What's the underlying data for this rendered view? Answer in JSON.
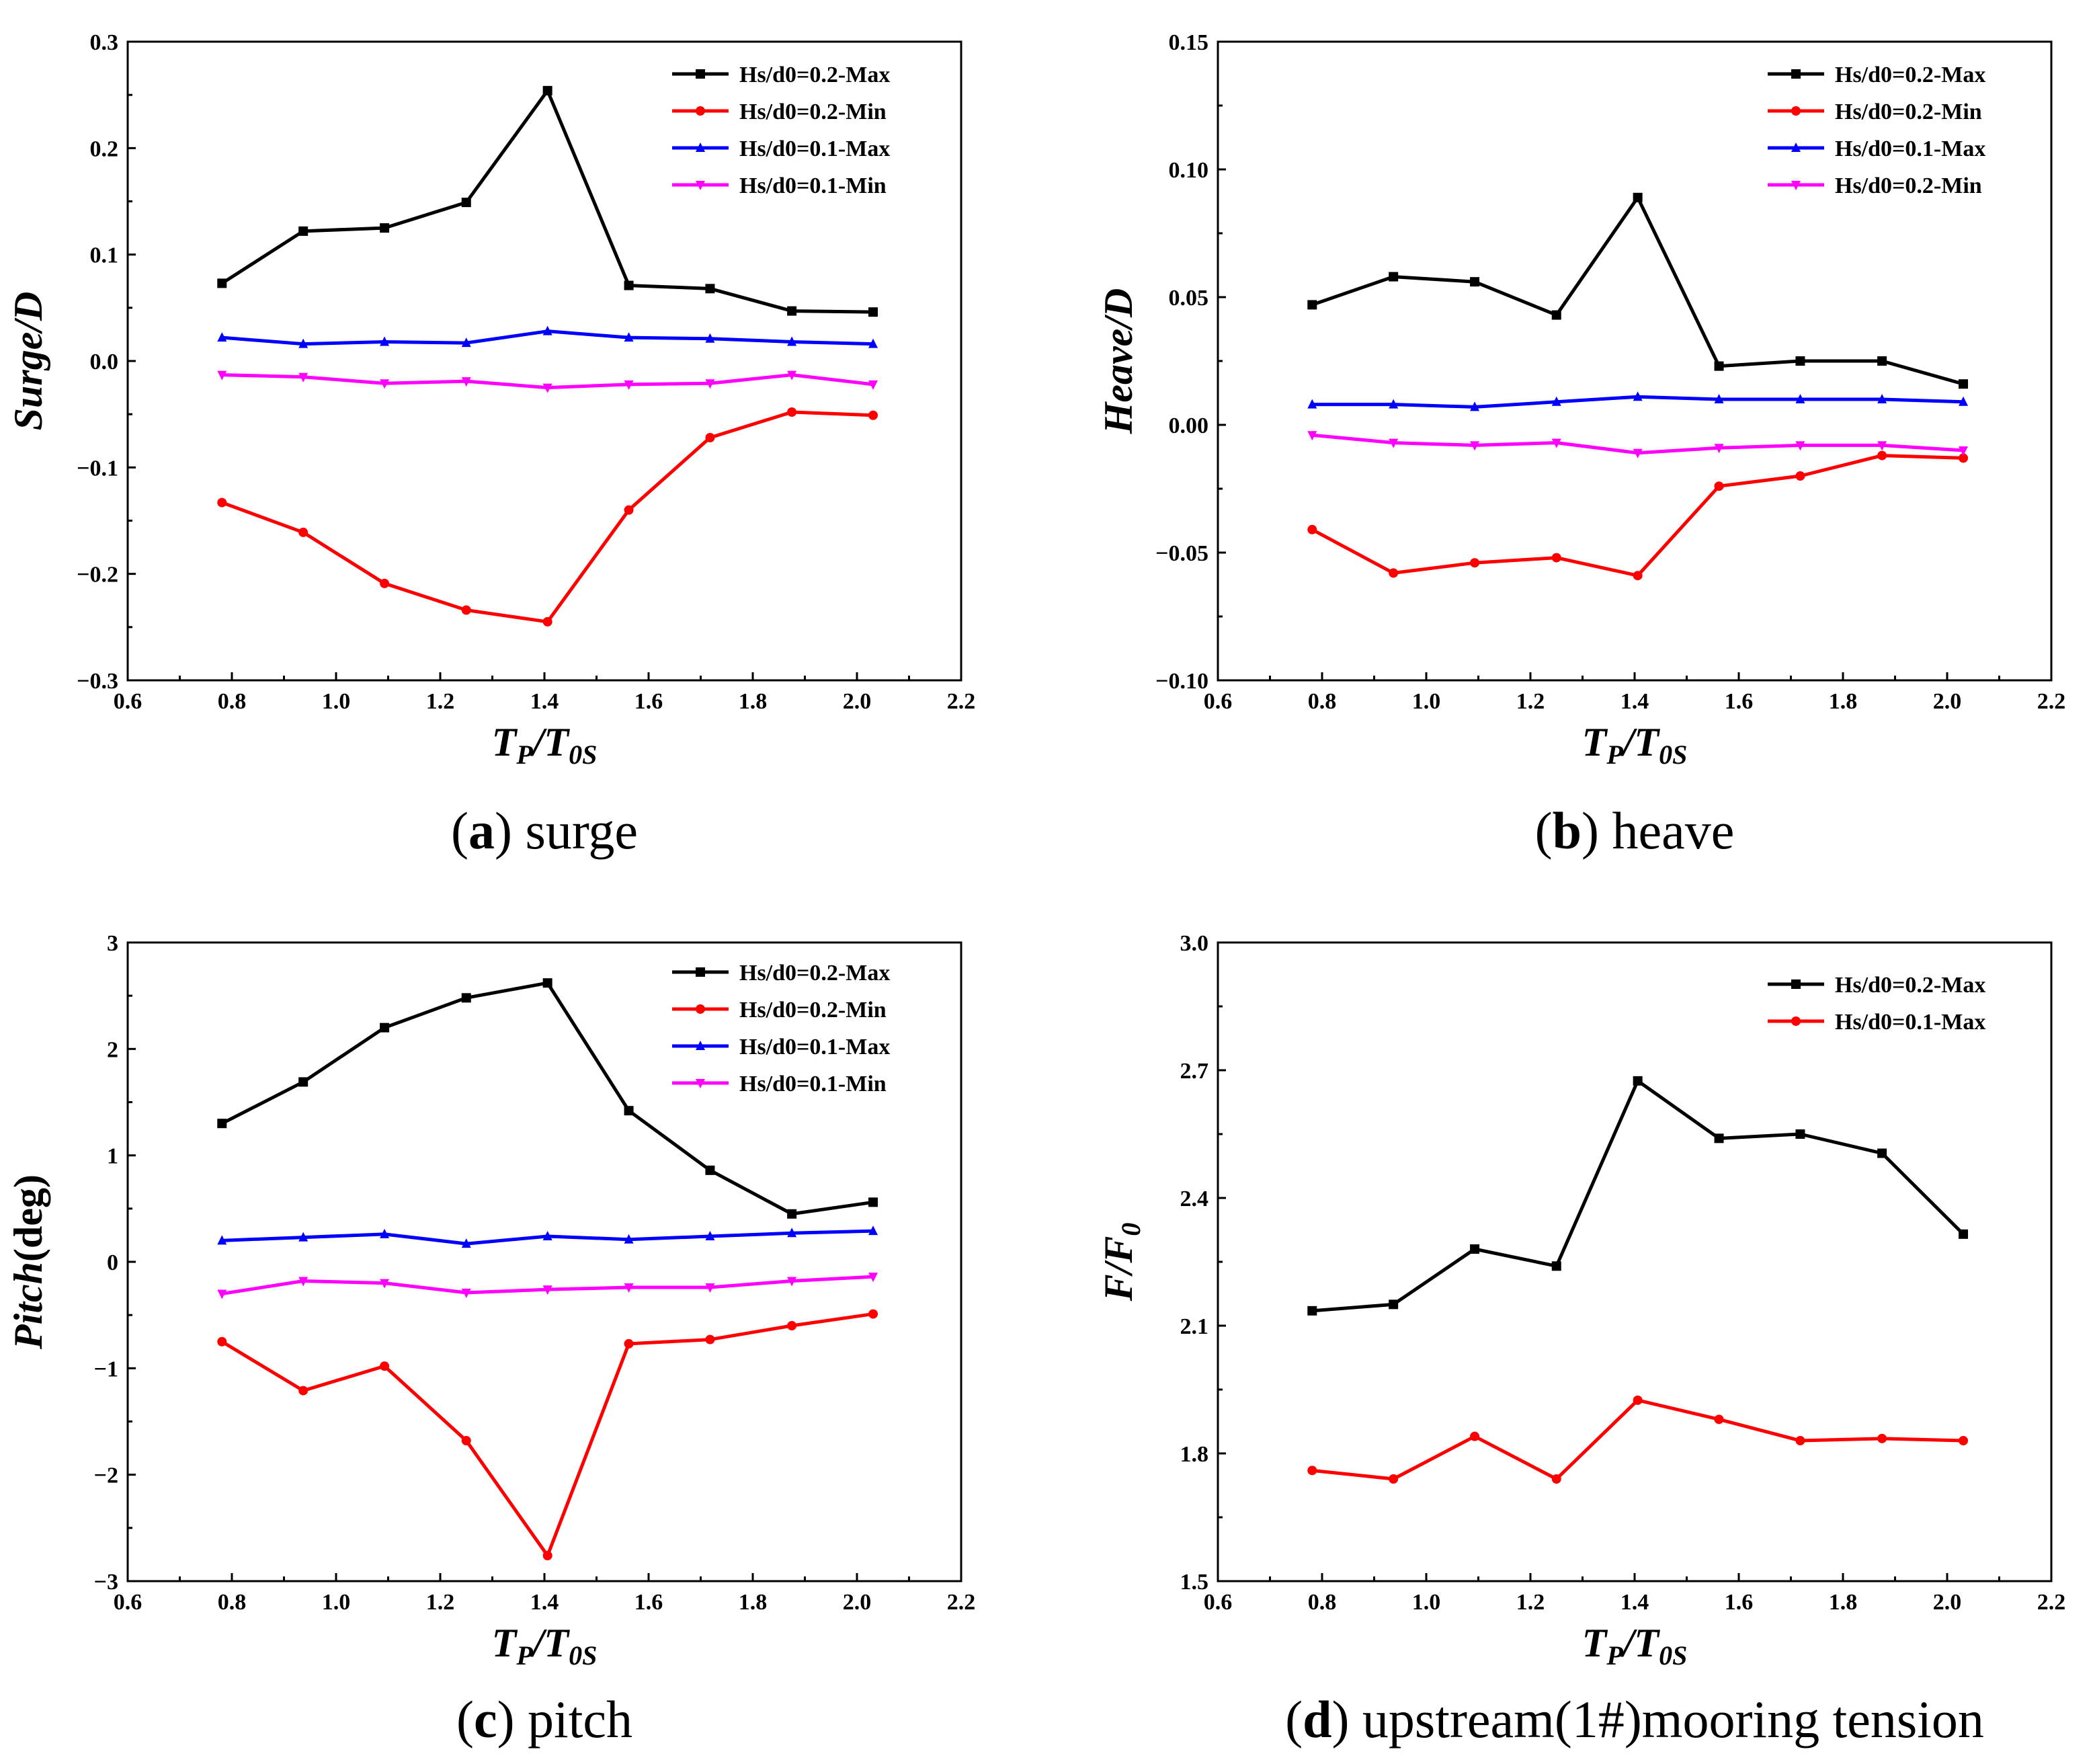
{
  "chart_data": [
    {
      "type": "line",
      "caption_letter": "a",
      "caption_text": "surge",
      "xlabel": {
        "main": "T",
        "sub1": "P",
        "slash": "/T",
        "sub2": "0S"
      },
      "ylabel": "Surge/D",
      "xlim": [
        0.6,
        2.2
      ],
      "ylim": [
        -0.3,
        0.3
      ],
      "xticks": [
        0.6,
        0.8,
        1.0,
        1.2,
        1.4,
        1.6,
        1.8,
        2.0,
        2.2
      ],
      "xtick_labels": [
        "0.6",
        "0.8",
        "1.0",
        "1.2",
        "1.4",
        "1.6",
        "1.8",
        "2.0",
        "2.2"
      ],
      "yticks": [
        -0.3,
        -0.2,
        -0.1,
        0.0,
        0.1,
        0.2,
        0.3
      ],
      "ytick_labels": [
        "−0.3",
        "−0.2",
        "−0.1",
        "0.0",
        "0.1",
        "0.2",
        "0.3"
      ],
      "x": [
        0.781,
        0.937,
        1.093,
        1.25,
        1.406,
        1.562,
        1.718,
        1.875,
        2.031
      ],
      "series": [
        {
          "name": "Hs/d0=0.2-Max",
          "color": "#000000",
          "marker": "square",
          "values": [
            0.073,
            0.122,
            0.125,
            0.149,
            0.254,
            0.071,
            0.068,
            0.047,
            0.046
          ]
        },
        {
          "name": "Hs/d0=0.2-Min",
          "color": "#ff0000",
          "marker": "circle",
          "values": [
            -0.133,
            -0.161,
            -0.209,
            -0.234,
            -0.245,
            -0.14,
            -0.072,
            -0.048,
            -0.051
          ]
        },
        {
          "name": "Hs/d0=0.1-Max",
          "color": "#0000ff",
          "marker": "triangle-up",
          "values": [
            0.022,
            0.016,
            0.018,
            0.017,
            0.028,
            0.022,
            0.021,
            0.018,
            0.016
          ]
        },
        {
          "name": "Hs/d0=0.1-Min",
          "color": "#ff00ff",
          "marker": "triangle-down",
          "values": [
            -0.013,
            -0.015,
            -0.021,
            -0.019,
            -0.025,
            -0.022,
            -0.021,
            -0.013,
            -0.022
          ]
        }
      ]
    },
    {
      "type": "line",
      "caption_letter": "b",
      "caption_text": "heave",
      "xlabel": {
        "main": "T",
        "sub1": "P",
        "slash": "/T",
        "sub2": "0S"
      },
      "ylabel": "Heave/D",
      "xlim": [
        0.6,
        2.2
      ],
      "ylim": [
        -0.1,
        0.15
      ],
      "xticks": [
        0.6,
        0.8,
        1.0,
        1.2,
        1.4,
        1.6,
        1.8,
        2.0,
        2.2
      ],
      "xtick_labels": [
        "0.6",
        "0.8",
        "1.0",
        "1.2",
        "1.4",
        "1.6",
        "1.8",
        "2.0",
        "2.2"
      ],
      "yticks": [
        -0.1,
        -0.05,
        0.0,
        0.05,
        0.1,
        0.15
      ],
      "ytick_labels": [
        "−0.10",
        "−0.05",
        "0.00",
        "0.05",
        "0.10",
        "0.15"
      ],
      "x": [
        0.781,
        0.937,
        1.093,
        1.25,
        1.406,
        1.562,
        1.718,
        1.875,
        2.031
      ],
      "series": [
        {
          "name": "Hs/d0=0.2-Max",
          "color": "#000000",
          "marker": "square",
          "values": [
            0.047,
            0.058,
            0.056,
            0.043,
            0.089,
            0.023,
            0.025,
            0.025,
            0.016
          ]
        },
        {
          "name": "Hs/d0=0.2-Min",
          "color": "#ff0000",
          "marker": "circle",
          "values": [
            -0.041,
            -0.058,
            -0.054,
            -0.052,
            -0.059,
            -0.024,
            -0.02,
            -0.012,
            -0.013
          ]
        },
        {
          "name": "Hs/d0=0.1-Max",
          "color": "#0000ff",
          "marker": "triangle-up",
          "values": [
            0.008,
            0.008,
            0.007,
            0.009,
            0.011,
            0.01,
            0.01,
            0.01,
            0.009
          ]
        },
        {
          "name": "Hs/d0=0.2-Min",
          "color": "#ff00ff",
          "marker": "triangle-down",
          "values": [
            -0.004,
            -0.007,
            -0.008,
            -0.007,
            -0.011,
            -0.009,
            -0.008,
            -0.008,
            -0.01
          ]
        }
      ]
    },
    {
      "type": "line",
      "caption_letter": "c",
      "caption_text": "pitch",
      "xlabel": {
        "main": "T",
        "sub1": "P",
        "slash": "/T",
        "sub2": "0S"
      },
      "ylabel": "Pitch(deg)",
      "xlim": [
        0.6,
        2.2
      ],
      "ylim": [
        -3,
        3
      ],
      "xticks": [
        0.6,
        0.8,
        1.0,
        1.2,
        1.4,
        1.6,
        1.8,
        2.0,
        2.2
      ],
      "xtick_labels": [
        "0.6",
        "0.8",
        "1.0",
        "1.2",
        "1.4",
        "1.6",
        "1.8",
        "2.0",
        "2.2"
      ],
      "yticks": [
        -3,
        -2,
        -1,
        0,
        1,
        2,
        3
      ],
      "ytick_labels": [
        "−3",
        "−2",
        "−1",
        "0",
        "1",
        "2",
        "3"
      ],
      "x": [
        0.781,
        0.937,
        1.093,
        1.25,
        1.406,
        1.562,
        1.718,
        1.875,
        2.031
      ],
      "series": [
        {
          "name": "Hs/d0=0.2-Max",
          "color": "#000000",
          "marker": "square",
          "values": [
            1.3,
            1.69,
            2.2,
            2.48,
            2.62,
            1.42,
            0.86,
            0.45,
            0.56
          ]
        },
        {
          "name": "Hs/d0=0.2-Min",
          "color": "#ff0000",
          "marker": "circle",
          "values": [
            -0.75,
            -1.21,
            -0.98,
            -1.68,
            -2.76,
            -0.77,
            -0.73,
            -0.6,
            -0.49
          ]
        },
        {
          "name": "Hs/d0=0.1-Max",
          "color": "#0000ff",
          "marker": "triangle-up",
          "values": [
            0.2,
            0.23,
            0.26,
            0.17,
            0.24,
            0.21,
            0.24,
            0.27,
            0.29
          ]
        },
        {
          "name": "Hs/d0=0.1-Min",
          "color": "#ff00ff",
          "marker": "triangle-down",
          "values": [
            -0.3,
            -0.18,
            -0.2,
            -0.29,
            -0.26,
            -0.24,
            -0.24,
            -0.18,
            -0.14
          ]
        }
      ]
    },
    {
      "type": "line",
      "caption_letter": "d",
      "caption_text": "upstream(1#)mooring tension",
      "xlabel": {
        "main": "T",
        "sub1": "P",
        "slash": "/T",
        "sub2": "0S"
      },
      "ylabel": "F/F",
      "ylabel_sub": "0",
      "xlim": [
        0.6,
        2.2
      ],
      "ylim": [
        1.5,
        3.0
      ],
      "xticks": [
        0.6,
        0.8,
        1.0,
        1.2,
        1.4,
        1.6,
        1.8,
        2.0,
        2.2
      ],
      "xtick_labels": [
        "0.6",
        "0.8",
        "1.0",
        "1.2",
        "1.4",
        "1.6",
        "1.8",
        "2.0",
        "2.2"
      ],
      "yticks": [
        1.5,
        1.8,
        2.1,
        2.4,
        2.7,
        3.0
      ],
      "ytick_labels": [
        "1.5",
        "1.8",
        "2.1",
        "2.4",
        "2.7",
        "3.0"
      ],
      "x": [
        0.781,
        0.937,
        1.093,
        1.25,
        1.406,
        1.562,
        1.718,
        1.875,
        2.031
      ],
      "series": [
        {
          "name": "Hs/d0=0.2-Max",
          "color": "#000000",
          "marker": "square",
          "values": [
            2.135,
            2.15,
            2.28,
            2.24,
            2.675,
            2.54,
            2.55,
            2.505,
            2.315
          ]
        },
        {
          "name": "Hs/d0=0.1-Max",
          "color": "#ff0000",
          "marker": "circle",
          "values": [
            1.76,
            1.74,
            1.84,
            1.74,
            1.925,
            1.88,
            1.83,
            1.835,
            1.83
          ]
        }
      ]
    }
  ]
}
